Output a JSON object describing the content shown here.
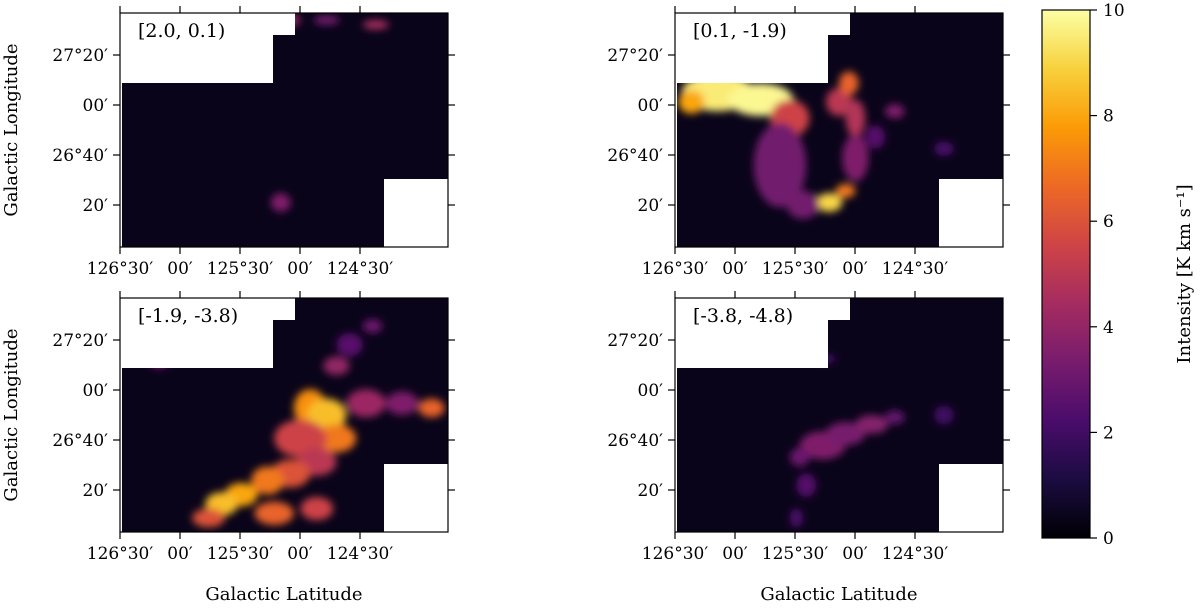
{
  "chart_data": {
    "type": "heatmap",
    "colormap": "inferno",
    "colors": {
      "inferno": [
        "#000004",
        "#1b0c41",
        "#4a0c6b",
        "#781c6d",
        "#a52c60",
        "#cf4446",
        "#ed6925",
        "#fb9b06",
        "#f7d13d",
        "#fcffa4"
      ],
      "background": "#ffffff",
      "axes": "#000000"
    },
    "xlabel": "Galactic Latitude",
    "ylabel": "Galactic Longitude",
    "x_ticks": [
      "126°30′",
      "00′",
      "125°30′",
      "00′",
      "124°30′"
    ],
    "y_ticks": [
      "27°20′",
      "00′",
      "26°40′",
      "20′"
    ],
    "colorbar": {
      "label": "Intensity [K km s⁻¹]",
      "range": [
        0,
        10
      ],
      "ticks": [
        "0",
        "2",
        "4",
        "6",
        "8",
        "10"
      ]
    },
    "panels": [
      {
        "label": "[2.0, 0.1)",
        "emission": [
          {
            "x": 0.51,
            "y": 0.97,
            "rx": 0.04,
            "ry": 0.03,
            "v": 4.0
          },
          {
            "x": 0.63,
            "y": 0.97,
            "rx": 0.04,
            "ry": 0.02,
            "v": 3.2
          },
          {
            "x": 0.78,
            "y": 0.95,
            "rx": 0.04,
            "ry": 0.02,
            "v": 4.5
          },
          {
            "x": 0.49,
            "y": 0.19,
            "rx": 0.03,
            "ry": 0.04,
            "v": 3.5
          }
        ]
      },
      {
        "label": "[0.1, -1.9)",
        "emission": [
          {
            "x": 0.13,
            "y": 0.66,
            "rx": 0.11,
            "ry": 0.08,
            "v": 9.5
          },
          {
            "x": 0.26,
            "y": 0.63,
            "rx": 0.1,
            "ry": 0.07,
            "v": 9.8
          },
          {
            "x": 0.05,
            "y": 0.62,
            "rx": 0.04,
            "ry": 0.05,
            "v": 8.0
          },
          {
            "x": 0.35,
            "y": 0.55,
            "rx": 0.06,
            "ry": 0.08,
            "v": 5.5
          },
          {
            "x": 0.32,
            "y": 0.35,
            "rx": 0.08,
            "ry": 0.18,
            "v": 3.2
          },
          {
            "x": 0.5,
            "y": 0.62,
            "rx": 0.04,
            "ry": 0.06,
            "v": 5.0
          },
          {
            "x": 0.53,
            "y": 0.7,
            "rx": 0.03,
            "ry": 0.05,
            "v": 6.5
          },
          {
            "x": 0.55,
            "y": 0.55,
            "rx": 0.03,
            "ry": 0.08,
            "v": 4.8
          },
          {
            "x": 0.55,
            "y": 0.38,
            "rx": 0.04,
            "ry": 0.1,
            "v": 3.5
          },
          {
            "x": 0.47,
            "y": 0.19,
            "rx": 0.04,
            "ry": 0.04,
            "v": 9.0
          },
          {
            "x": 0.52,
            "y": 0.24,
            "rx": 0.03,
            "ry": 0.03,
            "v": 7.0
          },
          {
            "x": 0.39,
            "y": 0.18,
            "rx": 0.05,
            "ry": 0.06,
            "v": 3.2
          },
          {
            "x": 0.67,
            "y": 0.58,
            "rx": 0.03,
            "ry": 0.03,
            "v": 3.5
          },
          {
            "x": 0.61,
            "y": 0.47,
            "rx": 0.03,
            "ry": 0.05,
            "v": 2.5
          },
          {
            "x": 0.82,
            "y": 0.42,
            "rx": 0.03,
            "ry": 0.03,
            "v": 2.2
          },
          {
            "x": 0.48,
            "y": 0.97,
            "rx": 0.02,
            "ry": 0.03,
            "v": 3.5
          }
        ]
      },
      {
        "label": "[-1.9, -3.8)",
        "emission": [
          {
            "x": 0.58,
            "y": 0.53,
            "rx": 0.05,
            "ry": 0.08,
            "v": 7.5
          },
          {
            "x": 0.63,
            "y": 0.5,
            "rx": 0.06,
            "ry": 0.07,
            "v": 8.5
          },
          {
            "x": 0.66,
            "y": 0.4,
            "rx": 0.06,
            "ry": 0.06,
            "v": 7.0
          },
          {
            "x": 0.55,
            "y": 0.4,
            "rx": 0.08,
            "ry": 0.08,
            "v": 5.5
          },
          {
            "x": 0.6,
            "y": 0.3,
            "rx": 0.06,
            "ry": 0.06,
            "v": 5.0
          },
          {
            "x": 0.52,
            "y": 0.25,
            "rx": 0.06,
            "ry": 0.06,
            "v": 6.0
          },
          {
            "x": 0.45,
            "y": 0.22,
            "rx": 0.05,
            "ry": 0.06,
            "v": 7.0
          },
          {
            "x": 0.37,
            "y": 0.16,
            "rx": 0.05,
            "ry": 0.05,
            "v": 8.0
          },
          {
            "x": 0.31,
            "y": 0.12,
            "rx": 0.05,
            "ry": 0.05,
            "v": 8.5
          },
          {
            "x": 0.27,
            "y": 0.06,
            "rx": 0.05,
            "ry": 0.04,
            "v": 6.0
          },
          {
            "x": 0.47,
            "y": 0.08,
            "rx": 0.06,
            "ry": 0.05,
            "v": 6.5
          },
          {
            "x": 0.6,
            "y": 0.1,
            "rx": 0.05,
            "ry": 0.05,
            "v": 5.5
          },
          {
            "x": 0.75,
            "y": 0.55,
            "rx": 0.06,
            "ry": 0.06,
            "v": 4.2
          },
          {
            "x": 0.86,
            "y": 0.55,
            "rx": 0.05,
            "ry": 0.05,
            "v": 3.5
          },
          {
            "x": 0.95,
            "y": 0.53,
            "rx": 0.04,
            "ry": 0.04,
            "v": 6.5
          },
          {
            "x": 0.66,
            "y": 0.71,
            "rx": 0.04,
            "ry": 0.04,
            "v": 4.0
          },
          {
            "x": 0.77,
            "y": 0.88,
            "rx": 0.03,
            "ry": 0.03,
            "v": 3.0
          },
          {
            "x": 0.12,
            "y": 0.72,
            "rx": 0.03,
            "ry": 0.02,
            "v": 3.0
          },
          {
            "x": 0.7,
            "y": 0.8,
            "rx": 0.04,
            "ry": 0.05,
            "v": 2.6
          }
        ]
      },
      {
        "label": "[-3.8, -4.8)",
        "emission": [
          {
            "x": 0.45,
            "y": 0.37,
            "rx": 0.07,
            "ry": 0.06,
            "v": 3.5
          },
          {
            "x": 0.52,
            "y": 0.42,
            "rx": 0.06,
            "ry": 0.05,
            "v": 3.3
          },
          {
            "x": 0.6,
            "y": 0.46,
            "rx": 0.05,
            "ry": 0.04,
            "v": 3.6
          },
          {
            "x": 0.38,
            "y": 0.32,
            "rx": 0.03,
            "ry": 0.04,
            "v": 3.0
          },
          {
            "x": 0.4,
            "y": 0.2,
            "rx": 0.03,
            "ry": 0.05,
            "v": 2.5
          },
          {
            "x": 0.37,
            "y": 0.06,
            "rx": 0.02,
            "ry": 0.04,
            "v": 2.3
          },
          {
            "x": 0.67,
            "y": 0.49,
            "rx": 0.03,
            "ry": 0.03,
            "v": 2.8
          },
          {
            "x": 0.82,
            "y": 0.5,
            "rx": 0.03,
            "ry": 0.04,
            "v": 2.0
          },
          {
            "x": 0.46,
            "y": 0.74,
            "rx": 0.03,
            "ry": 0.02,
            "v": 2.0
          }
        ]
      }
    ]
  }
}
